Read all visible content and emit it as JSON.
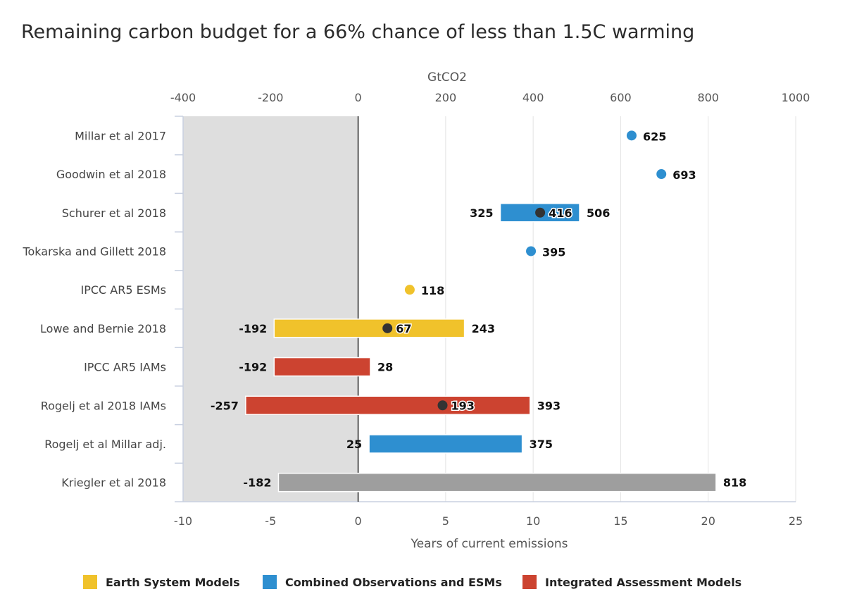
{
  "chart_data": {
    "type": "bar",
    "title": "Remaining carbon budget for a 66% chance of less than 1.5C warming",
    "x_top": {
      "label": "GtCO2",
      "range": [
        -400,
        1000
      ],
      "ticks": [
        "-400",
        "-200",
        "0",
        "200",
        "400",
        "600",
        "800",
        "1000"
      ],
      "tick_values": [
        -400,
        -200,
        0,
        200,
        400,
        600,
        800,
        1000
      ]
    },
    "x_bottom": {
      "label": "Years of current emissions",
      "range": [
        -10,
        25
      ],
      "ticks": [
        "-10",
        "-5",
        "0",
        "5",
        "10",
        "15",
        "20",
        "25"
      ],
      "tick_values": [
        -10,
        -5,
        0,
        5,
        10,
        15,
        20,
        25
      ]
    },
    "shaded_region": [
      -400,
      0
    ],
    "grid": true,
    "legend_position": "bottom",
    "groups": [
      {
        "name": "Earth System Models",
        "color": "#f0c22b"
      },
      {
        "name": "Combined Observations and ESMs",
        "color": "#2e8fd0"
      },
      {
        "name": "Integrated Assessment Models",
        "color": "#cc4330"
      },
      {
        "name": "",
        "color": "#9e9e9e"
      }
    ],
    "rows": [
      {
        "name": "Millar et al 2017",
        "group": 1,
        "low": null,
        "high": null,
        "point": 625,
        "low_label": "",
        "high_label": "",
        "point_label": "625"
      },
      {
        "name": "Goodwin et al 2018",
        "group": 1,
        "low": null,
        "high": null,
        "point": 693,
        "low_label": "",
        "high_label": "",
        "point_label": "693"
      },
      {
        "name": "Schurer et al 2018",
        "group": 1,
        "low": 325,
        "high": 506,
        "point": 416,
        "low_label": "325",
        "high_label": "506",
        "point_label": "416"
      },
      {
        "name": "Tokarska and Gillett 2018",
        "group": 1,
        "low": null,
        "high": null,
        "point": 395,
        "low_label": "",
        "high_label": "",
        "point_label": "395"
      },
      {
        "name": "IPCC AR5 ESMs",
        "group": 0,
        "low": null,
        "high": null,
        "point": 118,
        "low_label": "",
        "high_label": "",
        "point_label": "118"
      },
      {
        "name": "Lowe and Bernie 2018",
        "group": 0,
        "low": -192,
        "high": 243,
        "point": 67,
        "low_label": "-192",
        "high_label": "243",
        "point_label": "67"
      },
      {
        "name": "IPCC AR5 IAMs",
        "group": 2,
        "low": -192,
        "high": 28,
        "point": null,
        "low_label": "-192",
        "high_label": "28",
        "point_label": ""
      },
      {
        "name": "Rogelj et al 2018 IAMs",
        "group": 2,
        "low": -257,
        "high": 393,
        "point": 193,
        "low_label": "-257",
        "high_label": "393",
        "point_label": "193"
      },
      {
        "name": "Rogelj et al Millar adj.",
        "group": 1,
        "low": 25,
        "high": 375,
        "point": null,
        "low_label": "25",
        "high_label": "375",
        "point_label": ""
      },
      {
        "name": "Kriegler et al 2018",
        "group": 3,
        "low": -182,
        "high": 818,
        "point": null,
        "low_label": "-182",
        "high_label": "818",
        "point_label": ""
      }
    ]
  }
}
